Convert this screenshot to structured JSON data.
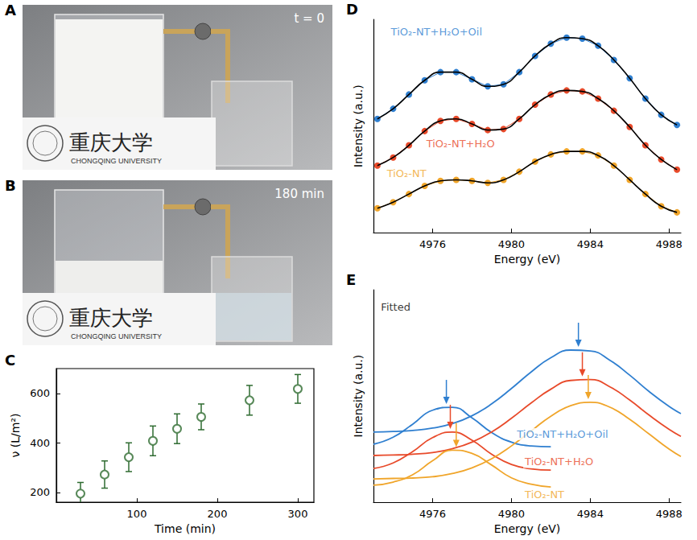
{
  "photos": [
    {
      "panel": "A",
      "time": "t = 0",
      "sign": [
        "重庆大学",
        "CHONGQING UNIVERSITY"
      ]
    },
    {
      "panel": "B",
      "time": "180 min",
      "sign": [
        "重庆大学",
        "CHONGQING UNIVERSITY"
      ]
    }
  ],
  "chart_data": [
    {
      "panel": "C",
      "type": "scatter",
      "x_label": "Time (min)",
      "y_label": "ν (L/m²)",
      "x": [
        30,
        60,
        90,
        120,
        150,
        180,
        240,
        300
      ],
      "values": [
        195,
        272,
        342,
        408,
        457,
        505,
        572,
        618
      ],
      "errors": [
        45,
        55,
        58,
        60,
        60,
        52,
        60,
        58
      ],
      "color": "#2e6b30",
      "marker": "circle_open",
      "xlim": [
        0,
        320
      ],
      "xticks": [
        100,
        200,
        300
      ],
      "ylim": [
        160,
        700
      ],
      "yticks": [
        200,
        400,
        600
      ],
      "grid": false
    },
    {
      "panel": "D",
      "type": "line",
      "x_label": "Energy (eV)",
      "y_label": "Intensity (a.u.)",
      "x": [
        4973.2,
        4974.0,
        4974.8,
        4975.6,
        4976.4,
        4977.2,
        4978.0,
        4978.8,
        4979.6,
        4980.4,
        4981.2,
        4982.0,
        4982.8,
        4983.6,
        4984.4,
        4985.2,
        4986.0,
        4986.8,
        4987.6,
        4988.4
      ],
      "series": [
        {
          "name": "TiO₂-NT+H₂O+Oil",
          "color": "#2f7fd0",
          "label_pos": [
            4973.8,
            9.9
          ],
          "values": [
            5.6,
            6.1,
            6.8,
            7.5,
            7.9,
            7.9,
            7.55,
            7.2,
            7.3,
            7.9,
            8.7,
            9.3,
            9.6,
            9.55,
            9.2,
            8.5,
            7.6,
            6.6,
            5.8,
            5.3
          ]
        },
        {
          "name": "TiO₂-NT+H₂O",
          "color": "#e84a2a",
          "label_pos": [
            4975.6,
            4.4
          ],
          "values": [
            3.3,
            3.7,
            4.3,
            5.0,
            5.5,
            5.6,
            5.35,
            5.05,
            5.1,
            5.6,
            6.3,
            6.8,
            7.0,
            6.95,
            6.6,
            6.0,
            5.2,
            4.3,
            3.6,
            3.1
          ]
        },
        {
          "name": "TiO₂-NT",
          "color": "#f0a52a",
          "label_pos": [
            4973.6,
            2.9
          ],
          "values": [
            1.2,
            1.5,
            1.9,
            2.3,
            2.55,
            2.6,
            2.55,
            2.45,
            2.6,
            3.0,
            3.5,
            3.85,
            4.0,
            4.0,
            3.8,
            3.3,
            2.6,
            1.9,
            1.3,
            1.0
          ]
        }
      ],
      "marker": "circle",
      "xlim": [
        4973,
        4988.6
      ],
      "xticks": [
        4976,
        4980,
        4984,
        4988
      ],
      "ylim": [
        0,
        10.5
      ],
      "tick_labels": "x",
      "grid": false
    },
    {
      "panel": "E",
      "type": "line",
      "x_label": "Energy (eV)",
      "y_label": "Intensity (a.u.)",
      "annotations": [
        {
          "text": "Fitted",
          "x": 4973.3,
          "y": 9.2
        }
      ],
      "series": [
        {
          "name": "TiO₂-NT+H₂O+Oil",
          "color": "#2f7fd0",
          "label_pos": [
            4980.2,
            3.2
          ],
          "components": [
            {
              "x": [
                4973,
                4974,
                4975,
                4976,
                4977,
                4978,
                4979,
                4980,
                4981,
                4982
              ],
              "values": [
                2.73,
                3.06,
                3.68,
                4.33,
                4.47,
                3.97,
                3.28,
                2.83,
                2.65,
                2.61
              ]
            },
            {
              "x": [
                4973,
                4974,
                4975,
                4976,
                4977,
                4978,
                4979,
                4980,
                4981,
                4982,
                4983,
                4984,
                4985,
                4986,
                4987,
                4988,
                4988.6
              ],
              "values": [
                3.3,
                3.33,
                3.38,
                3.49,
                3.7,
                4.07,
                4.63,
                5.35,
                6.13,
                6.8,
                7.16,
                7.12,
                6.68,
                5.98,
                5.2,
                4.51,
                4.17
              ]
            }
          ],
          "peaks": [
            [
              4976.7,
              4.47
            ],
            [
              4983.4,
              7.16
            ]
          ]
        },
        {
          "name": "TiO₂-NT+H₂O",
          "color": "#e84a2a",
          "label_pos": [
            4980.6,
            1.9
          ],
          "components": [
            {
              "x": [
                4973,
                4974,
                4975,
                4976,
                4977,
                4978,
                4979,
                4980,
                4981,
                4982
              ],
              "values": [
                1.59,
                1.85,
                2.39,
                3.04,
                3.3,
                2.92,
                2.26,
                1.78,
                1.57,
                1.51
              ]
            },
            {
              "x": [
                4973,
                4974,
                4975,
                4976,
                4977,
                4978,
                4979,
                4980,
                4981,
                4982,
                4983,
                4984,
                4985,
                4986,
                4987,
                4988,
                4988.6
              ],
              "values": [
                2.2,
                2.22,
                2.26,
                2.34,
                2.52,
                2.83,
                3.31,
                3.95,
                4.67,
                5.32,
                5.73,
                5.77,
                5.43,
                4.81,
                4.09,
                3.43,
                3.1
              ]
            }
          ],
          "peaks": [
            [
              4976.9,
              3.3
            ],
            [
              4983.6,
              5.77
            ]
          ]
        },
        {
          "name": "TiO₂-NT",
          "color": "#f0a52a",
          "label_pos": [
            4980.6,
            0.35
          ],
          "components": [
            {
              "x": [
                4973,
                4974,
                4975,
                4976,
                4977,
                4978,
                4979,
                4980,
                4981,
                4982
              ],
              "values": [
                0.8,
                0.95,
                1.3,
                1.95,
                2.45,
                2.3,
                1.75,
                1.15,
                0.85,
                0.72
              ]
            },
            {
              "x": [
                4973,
                4974,
                4975,
                4976,
                4977,
                4978,
                4979,
                4980,
                4981,
                4982,
                4983,
                4984,
                4985,
                4986,
                4987,
                4988,
                4988.6
              ],
              "values": [
                1.1,
                1.12,
                1.14,
                1.2,
                1.35,
                1.62,
                2.05,
                2.65,
                3.35,
                4.05,
                4.54,
                4.7,
                4.47,
                3.9,
                3.2,
                2.5,
                2.15
              ]
            }
          ],
          "peaks": [
            [
              4977.2,
              2.45
            ],
            [
              4983.9,
              4.7
            ]
          ]
        }
      ],
      "xlim": [
        4973,
        4988.6
      ],
      "xticks": [
        4976,
        4980,
        4984,
        4988
      ],
      "ylim": [
        0,
        10
      ],
      "tick_labels": "x",
      "grid": false
    }
  ]
}
